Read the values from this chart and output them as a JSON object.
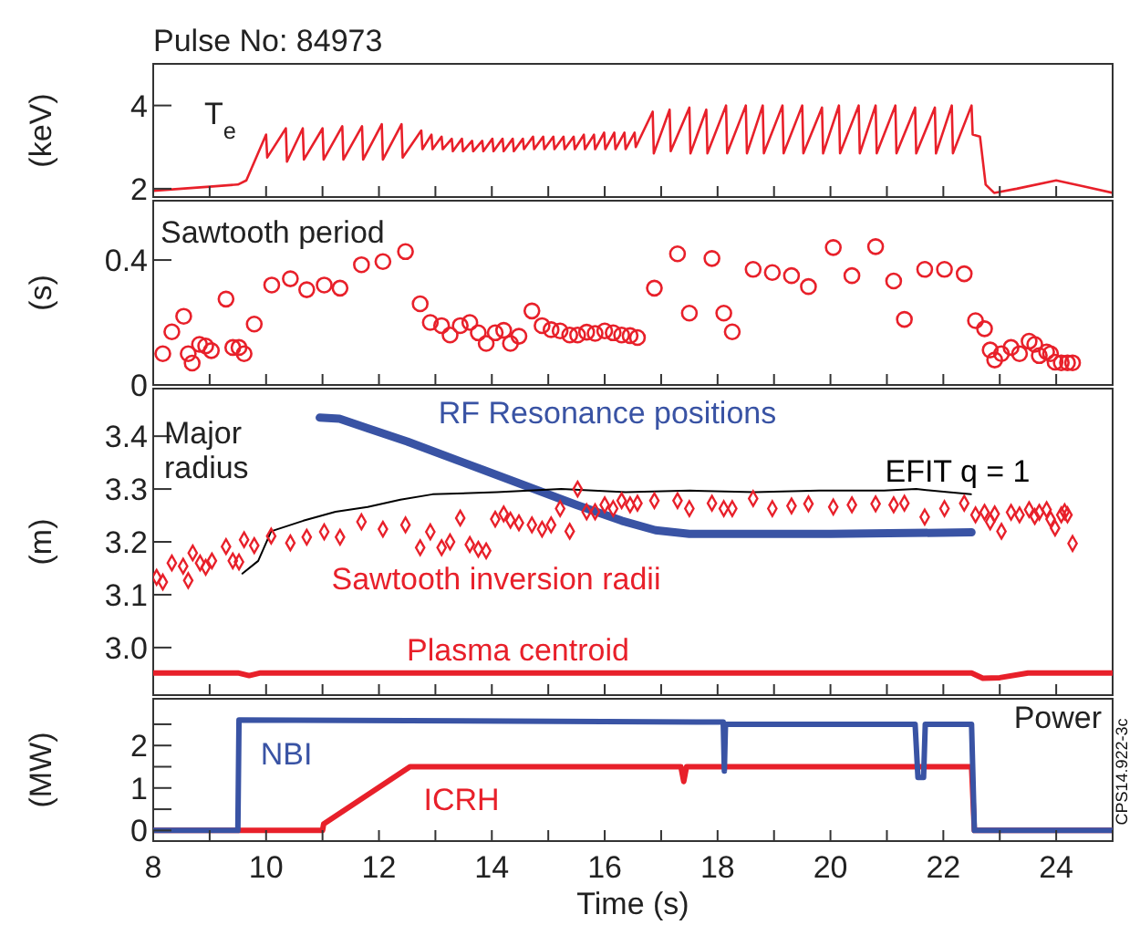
{
  "chart_data": [
    {
      "type": "line",
      "title": "Pulse No: 84973",
      "ylabel": "(keV)",
      "annotations": [
        "T$_{e}$"
      ],
      "xlim": [
        8,
        25
      ],
      "ylim": [
        1.8,
        5
      ],
      "yticks": [
        2,
        4
      ],
      "xticks": [
        8,
        9,
        10,
        11,
        12,
        13,
        14,
        15,
        16,
        17,
        18,
        19,
        20,
        21,
        22,
        23,
        24,
        25
      ],
      "tick_labels": "y",
      "series": [
        {
          "color": "#e8202a",
          "x": [
            8,
            8.5,
            9,
            9.5,
            9.65,
            10.0,
            10.02,
            10.35,
            10.37,
            10.65,
            10.67,
            11.0,
            11.02,
            11.35,
            11.37,
            11.7,
            11.72,
            12.05,
            12.07,
            12.4,
            12.42,
            12.75,
            12.77,
            12.93,
            12.95,
            13.11,
            13.13,
            13.29,
            13.31,
            13.47,
            13.49,
            13.65,
            13.67,
            13.83,
            13.85,
            14.01,
            14.03,
            14.19,
            14.21,
            14.37,
            14.39,
            14.55,
            14.57,
            14.73,
            14.75,
            14.91,
            14.93,
            15.09,
            15.11,
            15.27,
            15.29,
            15.45,
            15.47,
            15.63,
            15.65,
            15.81,
            15.83,
            15.99,
            16.01,
            16.17,
            16.19,
            16.35,
            16.37,
            16.53,
            16.55,
            16.85,
            16.87,
            17.15,
            17.17,
            17.5,
            17.52,
            17.8,
            17.82,
            18.15,
            18.17,
            18.5,
            18.52,
            18.8,
            18.82,
            19.15,
            19.17,
            19.5,
            19.52,
            19.85,
            19.87,
            20.15,
            20.17,
            20.5,
            20.52,
            20.8,
            20.82,
            21.15,
            21.17,
            21.5,
            21.52,
            21.85,
            21.87,
            22.15,
            22.17,
            22.5,
            22.52,
            22.65,
            22.75,
            22.9,
            23.3,
            24.0,
            24.5,
            25
          ],
          "values": [
            1.95,
            2.0,
            2.05,
            2.1,
            2.2,
            3.3,
            2.75,
            3.45,
            2.65,
            3.45,
            2.7,
            3.45,
            2.7,
            3.5,
            2.7,
            3.5,
            2.7,
            3.55,
            2.7,
            3.55,
            2.75,
            3.4,
            2.95,
            3.3,
            2.95,
            3.25,
            2.95,
            3.2,
            2.9,
            3.2,
            2.9,
            3.15,
            2.9,
            3.15,
            2.9,
            3.2,
            2.9,
            3.2,
            2.9,
            3.2,
            2.9,
            3.2,
            2.95,
            3.25,
            2.95,
            3.25,
            2.95,
            3.25,
            2.95,
            3.25,
            2.95,
            3.25,
            2.95,
            3.3,
            2.95,
            3.3,
            2.95,
            3.35,
            2.95,
            3.35,
            2.95,
            3.35,
            2.95,
            3.35,
            3.0,
            3.85,
            2.85,
            3.9,
            2.9,
            3.95,
            2.85,
            3.9,
            2.85,
            4.0,
            2.85,
            4.0,
            2.85,
            4.0,
            2.85,
            4.0,
            2.85,
            4.0,
            2.85,
            3.95,
            2.85,
            4.0,
            2.85,
            4.0,
            2.85,
            4.0,
            2.85,
            4.0,
            2.85,
            3.95,
            2.85,
            3.95,
            2.85,
            4.0,
            2.85,
            4.0,
            3.3,
            3.25,
            2.1,
            1.9,
            2.0,
            2.2,
            2.05,
            1.9
          ]
        }
      ]
    },
    {
      "type": "scatter",
      "ylabel": "(s)",
      "annotations": [
        "Sawtooth period"
      ],
      "xlim": [
        8,
        25
      ],
      "ylim": [
        0,
        0.59
      ],
      "yticks": [
        0,
        0.4
      ],
      "xticks": [
        8,
        9,
        10,
        11,
        12,
        13,
        14,
        15,
        16,
        17,
        18,
        19,
        20,
        21,
        22,
        23,
        24,
        25
      ],
      "tick_labels": "y",
      "series": [
        {
          "color": "#e8202a",
          "marker": "circle",
          "x": [
            8.17,
            8.33,
            8.54,
            8.62,
            8.69,
            8.82,
            8.93,
            9.03,
            9.29,
            9.41,
            9.52,
            9.61,
            9.79,
            10.1,
            10.43,
            10.72,
            11.03,
            11.31,
            11.69,
            12.07,
            12.47,
            12.73,
            12.91,
            13.11,
            13.26,
            13.44,
            13.61,
            13.76,
            13.9,
            14.06,
            14.21,
            14.33,
            14.48,
            14.71,
            14.89,
            15.05,
            15.21,
            15.38,
            15.52,
            15.68,
            15.83,
            16.0,
            16.15,
            16.3,
            16.45,
            16.58,
            16.88,
            17.29,
            17.5,
            17.9,
            18.11,
            18.26,
            18.63,
            18.97,
            19.31,
            19.61,
            20.05,
            20.38,
            20.8,
            21.12,
            21.31,
            21.67,
            22.02,
            22.37,
            22.57,
            22.73,
            22.83,
            22.91,
            23.03,
            23.2,
            23.35,
            23.52,
            23.62,
            23.7,
            23.83,
            23.9,
            23.98,
            24.09,
            24.2,
            24.29
          ],
          "values": [
            0.1,
            0.17,
            0.22,
            0.1,
            0.07,
            0.13,
            0.125,
            0.11,
            0.275,
            0.12,
            0.12,
            0.1,
            0.195,
            0.32,
            0.34,
            0.305,
            0.32,
            0.31,
            0.385,
            0.395,
            0.427,
            0.26,
            0.2,
            0.19,
            0.16,
            0.19,
            0.2,
            0.167,
            0.133,
            0.167,
            0.175,
            0.133,
            0.156,
            0.237,
            0.19,
            0.177,
            0.173,
            0.16,
            0.16,
            0.169,
            0.165,
            0.173,
            0.167,
            0.16,
            0.158,
            0.152,
            0.31,
            0.42,
            0.23,
            0.405,
            0.23,
            0.17,
            0.37,
            0.36,
            0.35,
            0.315,
            0.44,
            0.35,
            0.443,
            0.333,
            0.21,
            0.37,
            0.37,
            0.356,
            0.206,
            0.18,
            0.112,
            0.08,
            0.1,
            0.12,
            0.1,
            0.14,
            0.13,
            0.094,
            0.106,
            0.1,
            0.073,
            0.071,
            0.071,
            0.071
          ]
        }
      ]
    },
    {
      "type": "line",
      "ylabel": "(m)",
      "annotations": [
        "Major\nradius"
      ],
      "xlim": [
        8,
        25
      ],
      "ylim": [
        2.91,
        3.49
      ],
      "yticks": [
        {
          "value": 3.0,
          "label": "3.0"
        },
        3.1,
        3.2,
        3.3,
        3.4
      ],
      "xticks": [
        8,
        9,
        10,
        11,
        12,
        13,
        14,
        15,
        16,
        17,
        18,
        19,
        20,
        21,
        22,
        23,
        24,
        25
      ],
      "tick_labels": "y",
      "series": [
        {
          "name": "RF Resonance positions",
          "color": "#3953a4",
          "x": [
            10.95,
            11.3,
            11.8,
            12.5,
            13.5,
            14.5,
            15.5,
            16.3,
            16.9,
            17.5,
            20,
            22.5
          ],
          "values": [
            3.435,
            3.433,
            3.415,
            3.39,
            3.35,
            3.31,
            3.27,
            3.24,
            3.222,
            3.215,
            3.215,
            3.218
          ]
        },
        {
          "name": "EFIT q = 1",
          "color": "#000000",
          "x": [
            9.58,
            9.86,
            10.09,
            10.66,
            11.23,
            11.8,
            12.38,
            12.95,
            14.09,
            15.23,
            16.37,
            17.51,
            18.66,
            19.8,
            20.95,
            21.52,
            22.09,
            22.49
          ],
          "values": [
            3.14,
            3.164,
            3.22,
            3.24,
            3.257,
            3.266,
            3.28,
            3.29,
            3.294,
            3.3,
            3.294,
            3.297,
            3.294,
            3.297,
            3.297,
            3.3,
            3.294,
            3.29
          ]
        },
        {
          "name": "Sawtooth inversion radii",
          "type": "scatter",
          "marker": "diamond",
          "color": "#e8202a",
          "x": [
            8.06,
            8.17,
            8.33,
            8.53,
            8.62,
            8.7,
            8.83,
            8.93,
            9.04,
            9.29,
            9.41,
            9.52,
            9.61,
            9.79,
            10.09,
            10.43,
            10.72,
            11.03,
            11.31,
            11.69,
            12.07,
            12.47,
            12.73,
            12.91,
            13.11,
            13.26,
            13.44,
            13.61,
            13.76,
            13.9,
            14.06,
            14.21,
            14.33,
            14.48,
            14.71,
            14.89,
            15.05,
            15.21,
            15.38,
            15.52,
            15.68,
            15.83,
            16.0,
            16.15,
            16.3,
            16.45,
            16.58,
            16.88,
            17.29,
            17.5,
            17.9,
            18.11,
            18.26,
            18.63,
            18.97,
            19.31,
            19.61,
            20.05,
            20.38,
            20.8,
            21.12,
            21.31,
            21.67,
            22.02,
            22.37,
            22.57,
            22.73,
            22.83,
            22.91,
            23.03,
            23.2,
            23.35,
            23.52,
            23.62,
            23.7,
            23.83,
            23.9,
            23.98,
            24.09,
            24.15,
            24.2,
            24.29
          ],
          "values": [
            3.133,
            3.124,
            3.16,
            3.154,
            3.127,
            3.179,
            3.16,
            3.152,
            3.164,
            3.191,
            3.164,
            3.162,
            3.204,
            3.193,
            3.211,
            3.198,
            3.209,
            3.219,
            3.209,
            3.238,
            3.224,
            3.232,
            3.189,
            3.219,
            3.189,
            3.2,
            3.245,
            3.195,
            3.186,
            3.183,
            3.243,
            3.253,
            3.241,
            3.236,
            3.232,
            3.224,
            3.232,
            3.263,
            3.22,
            3.3,
            3.257,
            3.257,
            3.27,
            3.263,
            3.278,
            3.27,
            3.273,
            3.278,
            3.278,
            3.263,
            3.273,
            3.263,
            3.263,
            3.282,
            3.263,
            3.268,
            3.272,
            3.266,
            3.27,
            3.272,
            3.27,
            3.273,
            3.247,
            3.263,
            3.273,
            3.251,
            3.256,
            3.238,
            3.253,
            3.22,
            3.256,
            3.251,
            3.261,
            3.248,
            3.256,
            3.261,
            3.243,
            3.226,
            3.251,
            3.257,
            3.251,
            3.197
          ]
        },
        {
          "name": "Plasma centroid",
          "color": "#e8202a",
          "x": [
            8,
            9.5,
            9.7,
            9.9,
            22.5,
            22.7,
            23.0,
            23.5,
            25
          ],
          "values": [
            2.952,
            2.952,
            2.947,
            2.952,
            2.952,
            2.942,
            2.943,
            2.952,
            2.952
          ]
        }
      ]
    },
    {
      "type": "line",
      "xlabel": "Time (s)",
      "ylabel": "(MW)",
      "annotations": [
        "Power",
        "CPS14.922-3c"
      ],
      "xlim": [
        8,
        25
      ],
      "ylim": [
        -0.25,
        3.1
      ],
      "yticks": [
        0,
        {
          "value": 0.5,
          "label": null
        },
        1,
        {
          "value": 1.5,
          "label": null
        },
        2,
        {
          "value": 2.5,
          "label": null
        }
      ],
      "xticks": [
        8,
        {
          "value": 9,
          "label": null
        },
        10,
        {
          "value": 11,
          "label": null
        },
        12,
        {
          "value": 13,
          "label": null
        },
        14,
        {
          "value": 15,
          "label": null
        },
        16,
        {
          "value": 17,
          "label": null
        },
        18,
        {
          "value": 19,
          "label": null
        },
        20,
        {
          "value": 21,
          "label": null
        },
        22,
        {
          "value": 23,
          "label": null
        },
        24,
        {
          "value": 25,
          "label": null
        }
      ],
      "series": [
        {
          "name": "ICRH",
          "color": "#e8202a",
          "x": [
            8,
            11.0,
            11.02,
            12.55,
            17.35,
            17.4,
            17.45,
            22.5,
            22.55,
            25
          ],
          "values": [
            0,
            0,
            0.15,
            1.5,
            1.5,
            1.15,
            1.5,
            1.5,
            0,
            0
          ]
        },
        {
          "name": "NBI",
          "color": "#3953a4",
          "x": [
            8,
            9.5,
            9.52,
            18.1,
            18.12,
            18.14,
            21.5,
            21.55,
            21.65,
            21.68,
            22.5,
            22.55,
            25
          ],
          "values": [
            0,
            0,
            2.6,
            2.55,
            1.4,
            2.5,
            2.5,
            1.25,
            1.25,
            2.5,
            2.5,
            0,
            0
          ]
        }
      ]
    }
  ]
}
